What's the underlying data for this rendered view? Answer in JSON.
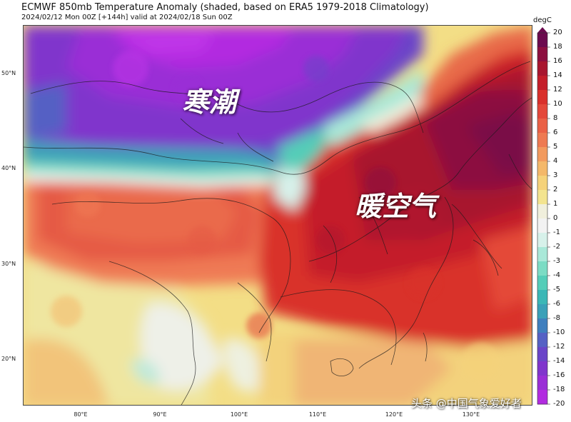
{
  "header": {
    "title": "ECMWF 850mb Temperature Anomaly (shaded, based on ERA5 1979-2018 Climatology)",
    "subtitle": "2024/02/12 Mon 00Z [+144h] valid at 2024/02/18 Sun 00Z"
  },
  "map": {
    "lat_labels": [
      "50°N",
      "40°N",
      "30°N",
      "20°N"
    ],
    "lon_labels": [
      "80°E",
      "90°E",
      "100°E",
      "110°E",
      "120°E",
      "130°E"
    ],
    "annotations": {
      "cold": "寒潮",
      "warm": "暖空气"
    }
  },
  "colorbar": {
    "unit": "degC",
    "ticks": [
      "20",
      "18",
      "16",
      "14",
      "12",
      "10",
      "8",
      "6",
      "5",
      "4",
      "3",
      "2",
      "1",
      "0",
      "-1",
      "-2",
      "-3",
      "-4",
      "-5",
      "-6",
      "-8",
      "-10",
      "-12",
      "-14",
      "-16",
      "-18",
      "-20"
    ],
    "colors": [
      "#6b0a4e",
      "#8c0f3f",
      "#a8162f",
      "#c41e2a",
      "#d9302b",
      "#e4483a",
      "#ea6146",
      "#ee7a52",
      "#f29a5e",
      "#f4b86a",
      "#f5d27a",
      "#f3e48f",
      "#f0efdc",
      "#f2f2f2",
      "#d7f1ea",
      "#a9e8d8",
      "#7cdcc4",
      "#55cdb8",
      "#3bb7b6",
      "#3aa0b8",
      "#3f7fbe",
      "#5561c4",
      "#6a45c8",
      "#8035cc",
      "#9a2ed6",
      "#b22be0"
    ]
  },
  "watermark": "头条 @中国气象爱好者"
}
